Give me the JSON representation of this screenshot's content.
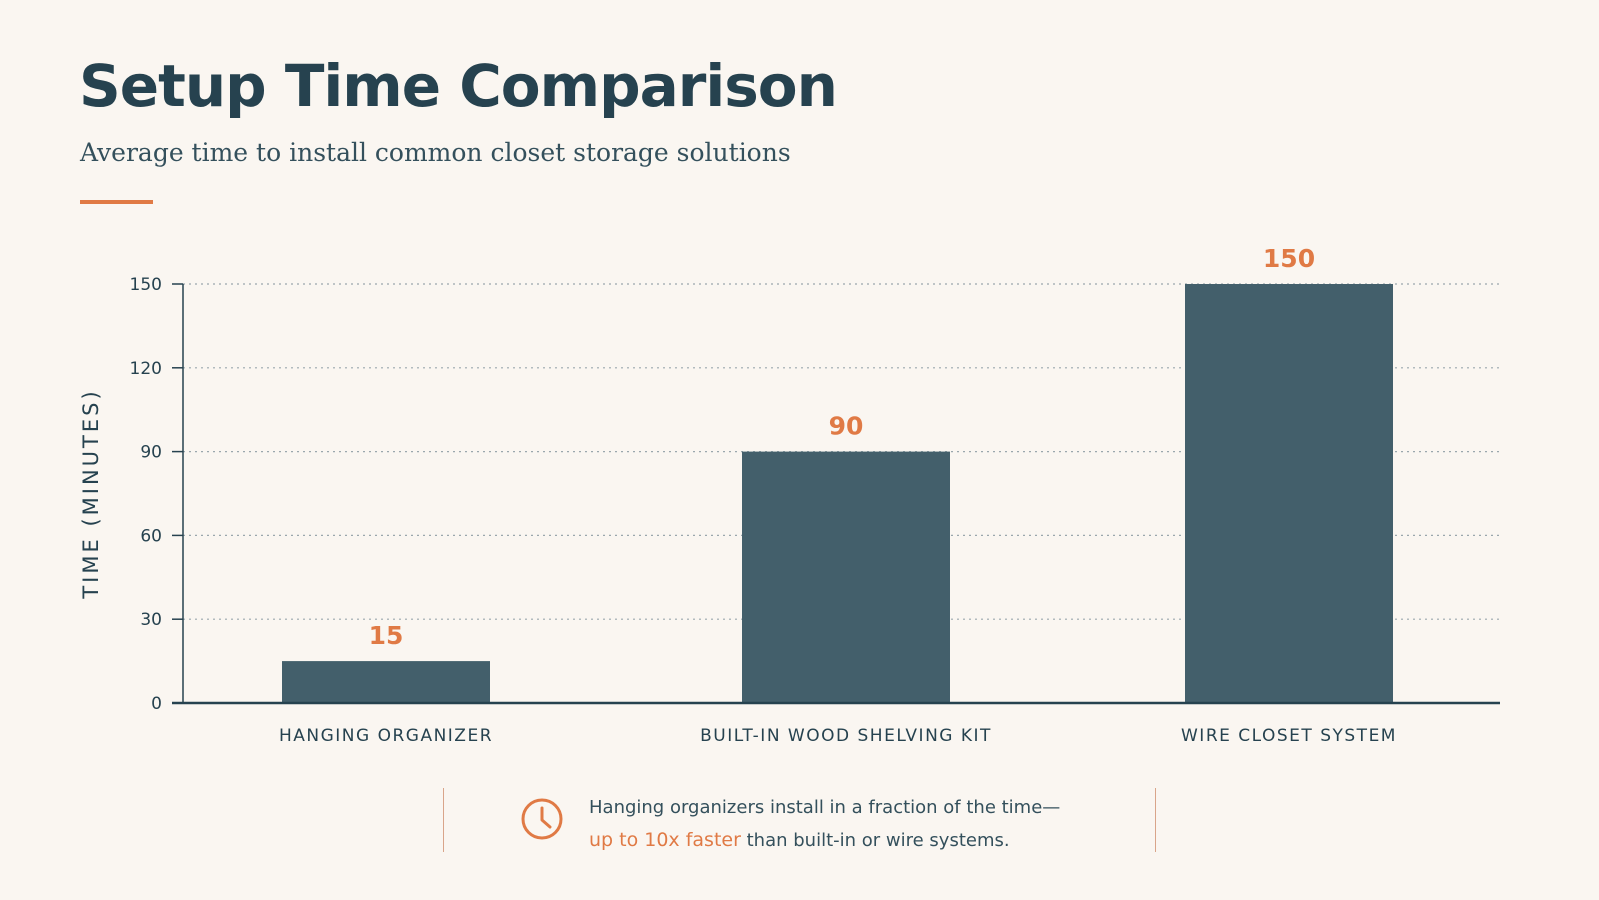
{
  "header": {
    "title": "Setup Time Comparison",
    "subtitle": "Average time to install common closet storage solutions"
  },
  "colors": {
    "background": "#faf6f1",
    "bar": "#435f6b",
    "accent": "#e07a45",
    "text": "#26424f"
  },
  "chart_data": {
    "type": "bar",
    "title": "Setup Time Comparison",
    "subtitle": "Average time to install common closet storage solutions",
    "xlabel": "",
    "ylabel": "TIME (MINUTES)",
    "categories": [
      "HANGING ORGANIZER",
      "BUILT-IN WOOD SHELVING KIT",
      "WIRE CLOSET SYSTEM"
    ],
    "values": [
      15,
      90,
      150
    ],
    "data_labels": [
      "15",
      "90",
      "150"
    ],
    "ylim": [
      0,
      150
    ],
    "yticks": [
      0,
      30,
      60,
      90,
      120,
      150
    ],
    "grid": "horizontal dotted",
    "legend": "none"
  },
  "footnote": {
    "icon": "clock-icon",
    "line1": "Hanging organizers install in a fraction of the time—",
    "highlight": "up to 10x faster",
    "line2_rest": " than built-in or wire systems."
  }
}
